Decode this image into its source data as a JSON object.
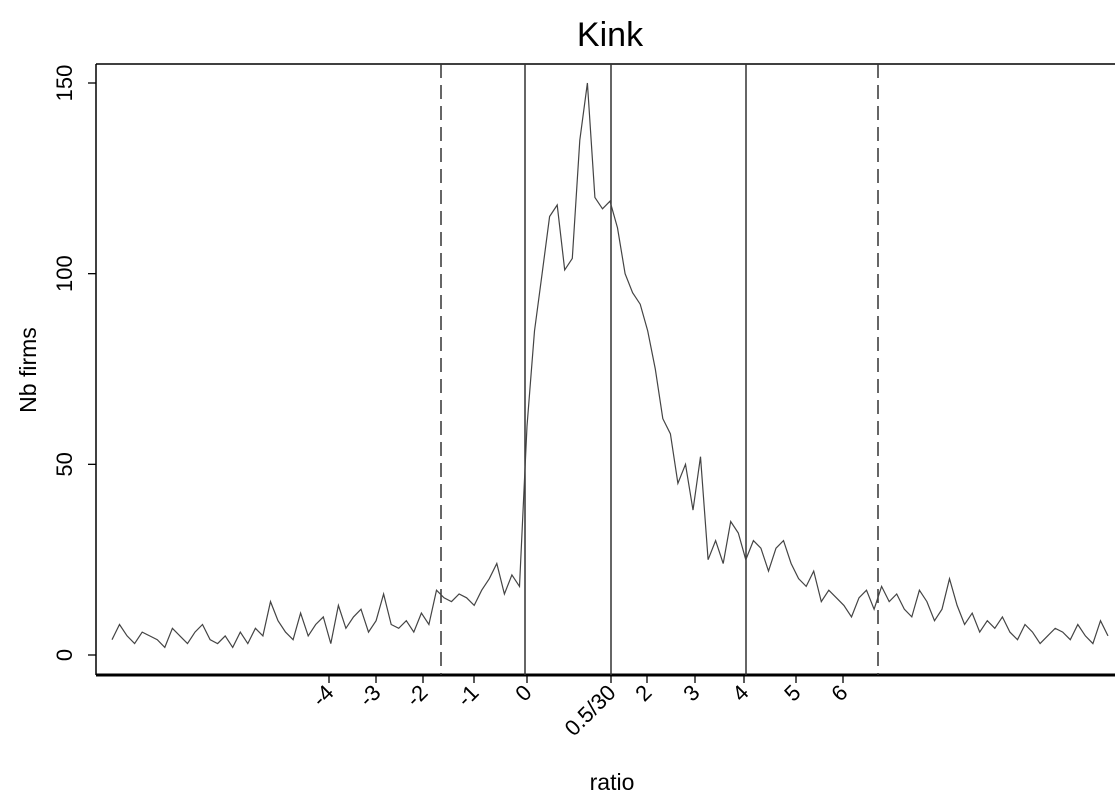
{
  "chart_data": {
    "type": "line",
    "title": "Kink",
    "xlabel": "ratio",
    "ylabel": "Nb firms",
    "grid": false,
    "legend": "none",
    "xlim": [
      -8.5,
      9.2
    ],
    "ylim": [
      -5,
      155
    ],
    "x_ticks": [
      {
        "label": "-4",
        "value": -4
      },
      {
        "label": "-3",
        "value": -3
      },
      {
        "label": "-2",
        "value": -2
      },
      {
        "label": "-1",
        "value": -1
      },
      {
        "label": "0",
        "value": 0
      },
      {
        "label": "0.5/30",
        "value": 1
      },
      {
        "label": "2",
        "value": 2
      },
      {
        "label": "3",
        "value": 3
      },
      {
        "label": "4",
        "value": 4
      },
      {
        "label": "5",
        "value": 5
      },
      {
        "label": "6",
        "value": 6
      }
    ],
    "y_ticks": [
      {
        "label": "0",
        "value": 0
      },
      {
        "label": "50",
        "value": 50
      },
      {
        "label": "100",
        "value": 100
      },
      {
        "label": "150",
        "value": 150
      }
    ],
    "reference_lines": [
      {
        "x": -1.0,
        "style": "dashed"
      },
      {
        "x": 0,
        "style": "solid"
      },
      {
        "x": 1,
        "style": "solid"
      },
      {
        "x": 2.6,
        "style": "solid"
      },
      {
        "x": 4.2,
        "style": "dashed"
      }
    ],
    "series": [
      {
        "x": [
          -6.2,
          -6.1,
          -6.0,
          -5.9,
          -5.8,
          -5.7,
          -5.6,
          -5.5,
          -5.4,
          -5.3,
          -5.2,
          -5.1,
          -5.0,
          -4.9,
          -4.8,
          -4.7,
          -4.6,
          -4.5,
          -4.4,
          -4.3,
          -4.2,
          -4.1,
          -4.0,
          -3.9,
          -3.8,
          -3.7,
          -3.6,
          -3.5,
          -3.4,
          -3.3,
          -3.2,
          -3.1,
          -3.0,
          -2.9,
          -2.8,
          -2.7,
          -2.6,
          -2.5,
          -2.4,
          -2.3,
          -2.2,
          -2.1,
          -2.0,
          -1.9,
          -1.8,
          -1.7,
          -1.6,
          -1.5,
          -1.4,
          -1.3,
          -1.2,
          -1.1,
          -1.0,
          -0.9,
          -0.8,
          -0.7,
          -0.6,
          -0.5,
          -0.4,
          -0.3,
          -0.2,
          -0.1,
          0.0,
          0.1,
          0.2,
          0.3,
          0.4,
          0.5,
          0.6,
          0.7,
          0.8,
          0.9,
          1.0,
          1.1,
          1.2,
          1.3,
          1.4,
          1.5,
          1.6,
          1.7,
          1.8,
          1.9,
          2.0,
          2.1,
          2.2,
          2.3,
          2.4,
          2.5,
          2.6,
          2.7,
          2.8,
          2.9,
          3.0,
          3.1,
          3.2,
          3.3,
          3.4,
          3.5,
          3.6,
          3.7,
          3.8,
          3.9,
          4.0,
          4.1,
          4.2,
          4.3,
          4.4,
          4.5,
          4.6,
          4.7,
          4.8,
          4.9,
          5.0,
          5.1,
          5.2,
          5.3,
          5.4,
          5.5,
          5.6,
          5.7,
          5.8,
          5.9,
          6.0,
          6.1,
          6.2,
          6.3,
          6.4,
          6.5,
          6.6,
          6.7,
          6.8,
          6.9,
          7.0
        ],
        "values": [
          4,
          8,
          5,
          3,
          6,
          5,
          4,
          2,
          7,
          5,
          3,
          6,
          8,
          4,
          3,
          5,
          2,
          6,
          3,
          7,
          5,
          14,
          9,
          6,
          4,
          11,
          5,
          8,
          10,
          3,
          13,
          7,
          10,
          12,
          6,
          9,
          16,
          8,
          7,
          9,
          6,
          11,
          8,
          17,
          15,
          14,
          16,
          15,
          13,
          17,
          20,
          24,
          16,
          21,
          18,
          60,
          85,
          100,
          115,
          118,
          101,
          104,
          135,
          150,
          120,
          117,
          119,
          112,
          100,
          95,
          92,
          85,
          75,
          62,
          58,
          45,
          50,
          38,
          52,
          25,
          30,
          24,
          35,
          32,
          25,
          30,
          28,
          22,
          28,
          30,
          24,
          20,
          18,
          22,
          14,
          17,
          15,
          13,
          10,
          15,
          17,
          12,
          18,
          14,
          16,
          12,
          10,
          17,
          14,
          9,
          12,
          20,
          13,
          8,
          11,
          6,
          9,
          7,
          10,
          6,
          4,
          8,
          6,
          3,
          5,
          7,
          6,
          4,
          8,
          5,
          3,
          9,
          5
        ]
      }
    ]
  }
}
